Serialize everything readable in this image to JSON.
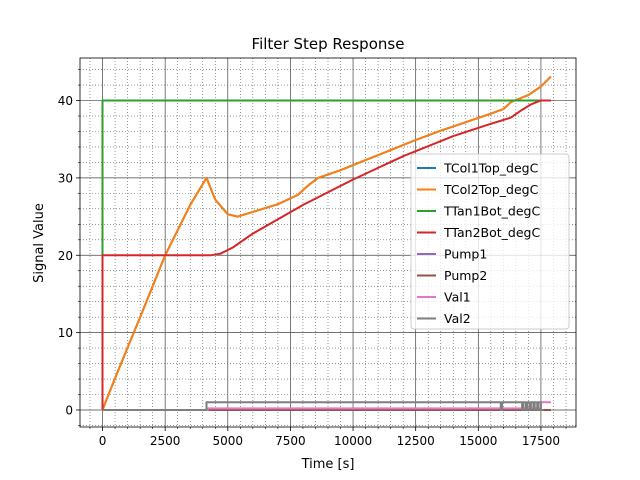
{
  "chart_data": {
    "type": "line",
    "title": "Filter Step Response",
    "xlabel": "Time [s]",
    "ylabel": "Signal Value",
    "xlim": [
      -900,
      18900
    ],
    "ylim": [
      -2.2,
      45.5
    ],
    "xticks": [
      0,
      2500,
      5000,
      7500,
      10000,
      12500,
      15000,
      17500
    ],
    "xtick_labels": [
      "0",
      "2500",
      "5000",
      "7500",
      "10000",
      "12500",
      "15000",
      "17500"
    ],
    "yticks": [
      0,
      10,
      20,
      30,
      40
    ],
    "ytick_labels": [
      "0",
      "10",
      "20",
      "30",
      "40"
    ],
    "xminor_step": 500,
    "yminor_step": 2,
    "grid": "major solid, minor dotted",
    "legend_position": "center-right",
    "series": [
      {
        "name": "TCol1Top_degC",
        "color": "#1f77b4",
        "x": [
          0,
          300,
          800,
          1500,
          2500,
          3500,
          4150,
          4500,
          5000,
          5400,
          6000,
          7000,
          7800,
          8200,
          8600,
          9500,
          10500,
          11500,
          12500,
          13500,
          14500,
          15500,
          16000,
          16300,
          16600,
          17000,
          17500,
          17900
        ],
        "y": [
          0,
          2.5,
          6.5,
          12.0,
          20.0,
          26.5,
          30.0,
          27.2,
          25.3,
          25.0,
          25.6,
          26.6,
          27.8,
          29.0,
          30.0,
          31.0,
          32.3,
          33.6,
          34.9,
          36.1,
          37.2,
          38.3,
          38.9,
          39.8,
          40.2,
          40.7,
          41.8,
          43.1
        ]
      },
      {
        "name": "TCol2Top_degC",
        "color": "#ff7f0e",
        "x": [
          0,
          300,
          800,
          1500,
          2500,
          3500,
          4150,
          4500,
          5000,
          5400,
          6000,
          7000,
          7800,
          8200,
          8600,
          9500,
          10500,
          11500,
          12500,
          13500,
          14500,
          15500,
          16000,
          16300,
          16600,
          17000,
          17500,
          17900
        ],
        "y": [
          0,
          2.5,
          6.5,
          12.0,
          20.0,
          26.5,
          30.0,
          27.2,
          25.3,
          25.0,
          25.6,
          26.6,
          27.8,
          29.0,
          30.0,
          31.0,
          32.3,
          33.6,
          34.9,
          36.1,
          37.2,
          38.3,
          38.9,
          39.8,
          40.2,
          40.7,
          41.8,
          43.1
        ]
      },
      {
        "name": "TTan1Bot_degC",
        "color": "#2ca02c",
        "x": [
          0,
          0,
          17900
        ],
        "y": [
          0,
          40,
          40
        ]
      },
      {
        "name": "TTan2Bot_degC",
        "color": "#d62728",
        "x": [
          0,
          0,
          4300,
          4700,
          5200,
          6000,
          8000,
          10000,
          12000,
          14000,
          15500,
          16300,
          16700,
          17100,
          17500,
          17900
        ],
        "y": [
          0,
          20,
          20,
          20.2,
          21.0,
          22.8,
          26.5,
          29.8,
          32.8,
          35.4,
          37.0,
          37.8,
          38.7,
          39.5,
          40.0,
          40.0
        ]
      },
      {
        "name": "Pump1",
        "color": "#9467bd",
        "x": [
          0,
          17900
        ],
        "y": [
          0,
          0
        ]
      },
      {
        "name": "Pump2",
        "color": "#8c564b",
        "x": [
          0,
          17900
        ],
        "y": [
          0,
          0
        ]
      },
      {
        "name": "Val1",
        "color": "#e377c2",
        "x": [
          0,
          4200,
          4200,
          17500,
          17500,
          17900
        ],
        "y": [
          0,
          0,
          0.2,
          0.2,
          1.0,
          1.0
        ]
      },
      {
        "name": "Val2",
        "color": "#7f7f7f",
        "x": [
          0,
          4150,
          4150,
          15900,
          15900,
          15950,
          15950,
          16750,
          16750,
          16800,
          16800,
          16900,
          16900,
          16950,
          16950,
          17050,
          17050,
          17100,
          17100,
          17200,
          17200,
          17250,
          17250,
          17350,
          17350,
          17400,
          17400,
          17500,
          17500,
          17600
        ],
        "y": [
          0,
          0,
          1,
          1,
          0,
          0,
          1,
          1,
          0,
          0,
          1,
          1,
          0,
          0,
          1,
          1,
          0,
          0,
          1,
          1,
          0,
          0,
          1,
          1,
          0,
          0,
          1,
          1,
          0,
          0
        ]
      }
    ]
  }
}
